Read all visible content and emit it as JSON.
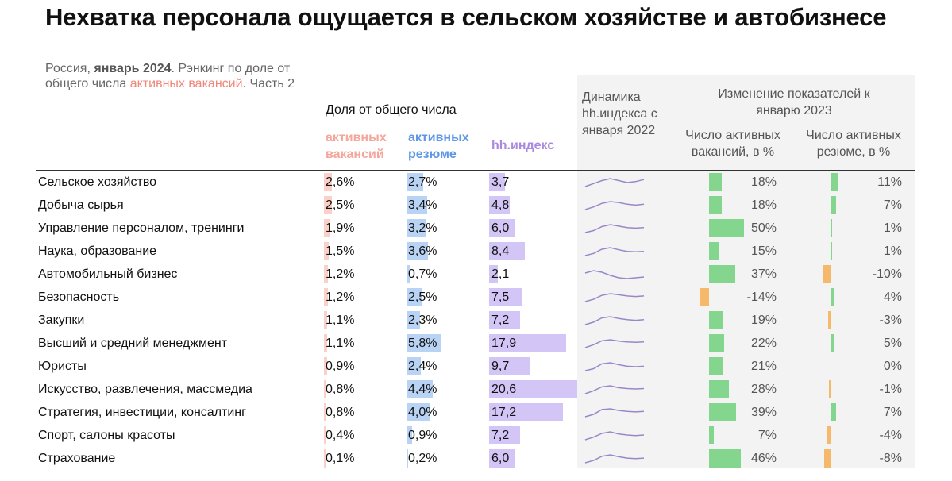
{
  "title": "Нехватка персонала ощущается в сельском хозяйстве и автобизнесе",
  "subtitle": {
    "part1": "Россия, ",
    "bold": "январь 2024",
    "part2": ". Рэнкинг по доле от общего числа ",
    "highlight": "активных вакансий",
    "part3": ". Часть 2"
  },
  "headers": {
    "share": "Доля от общего числа",
    "vacancies": "активных вакансий",
    "resumes": "активных резюме",
    "hh": "hh.индекс",
    "dynamics": "Динамика hh.индекса с января 2022",
    "change": "Изменение показателей к январю 2023",
    "change_vac": "Число активных вакансий, в %",
    "change_res": "Число активных резюме, в %"
  },
  "colors": {
    "vacancies": "#fbd0c9",
    "resumes": "#b9d3f5",
    "hh": "#d4c5f7",
    "positive": "#84d68e",
    "negative": "#f6b86a",
    "spark": "#9a87c9"
  },
  "chart_data": {
    "type": "table",
    "rows": [
      {
        "category": "Сельское хозяйство",
        "vac": 2.6,
        "vac_label": "2,6%",
        "res": 2.7,
        "res_label": "2,7%",
        "hh": 3.7,
        "hh_label": "3,7",
        "chg_vac": 18,
        "chg_vac_label": "18%",
        "chg_res": 11,
        "chg_res_label": "11%"
      },
      {
        "category": "Добыча сырья",
        "vac": 2.5,
        "vac_label": "2,5%",
        "res": 3.4,
        "res_label": "3,4%",
        "hh": 4.8,
        "hh_label": "4,8",
        "chg_vac": 18,
        "chg_vac_label": "18%",
        "chg_res": 7,
        "chg_res_label": "7%"
      },
      {
        "category": "Управление персоналом, тренинги",
        "vac": 1.9,
        "vac_label": "1,9%",
        "res": 3.2,
        "res_label": "3,2%",
        "hh": 6.0,
        "hh_label": "6,0",
        "chg_vac": 50,
        "chg_vac_label": "50%",
        "chg_res": 1,
        "chg_res_label": "1%"
      },
      {
        "category": "Наука, образование",
        "vac": 1.5,
        "vac_label": "1,5%",
        "res": 3.6,
        "res_label": "3,6%",
        "hh": 8.4,
        "hh_label": "8,4",
        "chg_vac": 15,
        "chg_vac_label": "15%",
        "chg_res": 1,
        "chg_res_label": "1%"
      },
      {
        "category": "Автомобильный бизнес",
        "vac": 1.2,
        "vac_label": "1,2%",
        "res": 0.7,
        "res_label": "0,7%",
        "hh": 2.1,
        "hh_label": "2,1",
        "chg_vac": 37,
        "chg_vac_label": "37%",
        "chg_res": -10,
        "chg_res_label": "-10%"
      },
      {
        "category": "Безопасность",
        "vac": 1.2,
        "vac_label": "1,2%",
        "res": 2.5,
        "res_label": "2,5%",
        "hh": 7.5,
        "hh_label": "7,5",
        "chg_vac": -14,
        "chg_vac_label": "-14%",
        "chg_res": 4,
        "chg_res_label": "4%"
      },
      {
        "category": "Закупки",
        "vac": 1.1,
        "vac_label": "1,1%",
        "res": 2.3,
        "res_label": "2,3%",
        "hh": 7.2,
        "hh_label": "7,2",
        "chg_vac": 19,
        "chg_vac_label": "19%",
        "chg_res": -3,
        "chg_res_label": "-3%"
      },
      {
        "category": "Высший и средний менеджмент",
        "vac": 1.1,
        "vac_label": "1,1%",
        "res": 5.8,
        "res_label": "5,8%",
        "hh": 17.9,
        "hh_label": "17,9",
        "chg_vac": 22,
        "chg_vac_label": "22%",
        "chg_res": 5,
        "chg_res_label": "5%"
      },
      {
        "category": "Юристы",
        "vac": 0.9,
        "vac_label": "0,9%",
        "res": 2.4,
        "res_label": "2,4%",
        "hh": 9.7,
        "hh_label": "9,7",
        "chg_vac": 21,
        "chg_vac_label": "21%",
        "chg_res": 0,
        "chg_res_label": "0%"
      },
      {
        "category": "Искусство, развлечения, массмедиа",
        "vac": 0.8,
        "vac_label": "0,8%",
        "res": 4.4,
        "res_label": "4,4%",
        "hh": 20.6,
        "hh_label": "20,6",
        "chg_vac": 28,
        "chg_vac_label": "28%",
        "chg_res": -1,
        "chg_res_label": "-1%"
      },
      {
        "category": "Стратегия, инвестиции, консалтинг",
        "vac": 0.8,
        "vac_label": "0,8%",
        "res": 4.0,
        "res_label": "4,0%",
        "hh": 17.2,
        "hh_label": "17,2",
        "chg_vac": 39,
        "chg_vac_label": "39%",
        "chg_res": 7,
        "chg_res_label": "7%"
      },
      {
        "category": "Спорт, салоны красоты",
        "vac": 0.4,
        "vac_label": "0,4%",
        "res": 0.9,
        "res_label": "0,9%",
        "hh": 7.2,
        "hh_label": "7,2",
        "chg_vac": 7,
        "chg_vac_label": "7%",
        "chg_res": -4,
        "chg_res_label": "-4%"
      },
      {
        "category": "Страхование",
        "vac": 0.1,
        "vac_label": "0,1%",
        "res": 0.2,
        "res_label": "0,2%",
        "hh": 6.0,
        "hh_label": "6,0",
        "chg_vac": 46,
        "chg_vac_label": "46%",
        "chg_res": -8,
        "chg_res_label": "-8%"
      }
    ],
    "sparklines": [
      [
        3.0,
        3.3,
        3.6,
        3.8,
        3.6,
        3.4,
        3.5,
        3.7
      ],
      [
        4.2,
        4.5,
        4.9,
        5.1,
        5.0,
        4.8,
        4.7,
        4.8
      ],
      [
        5.0,
        5.4,
        6.2,
        6.6,
        6.3,
        6.0,
        5.9,
        6.0
      ],
      [
        7.6,
        8.0,
        8.8,
        9.1,
        8.7,
        8.4,
        8.3,
        8.4
      ],
      [
        2.6,
        2.9,
        2.7,
        2.3,
        2.0,
        1.9,
        2.0,
        2.1
      ],
      [
        6.5,
        6.9,
        7.6,
        7.9,
        7.7,
        7.5,
        7.4,
        7.5
      ],
      [
        6.4,
        6.8,
        7.5,
        7.7,
        7.4,
        7.2,
        7.1,
        7.2
      ],
      [
        15.0,
        16.5,
        18.5,
        19.0,
        18.3,
        17.9,
        17.7,
        17.9
      ],
      [
        8.8,
        9.2,
        10.2,
        10.4,
        10.0,
        9.7,
        9.6,
        9.7
      ],
      [
        18.0,
        19.5,
        21.5,
        22.0,
        21.0,
        20.6,
        20.4,
        20.6
      ],
      [
        15.0,
        16.0,
        18.0,
        18.3,
        17.6,
        17.2,
        17.0,
        17.2
      ],
      [
        6.3,
        6.8,
        7.5,
        7.8,
        7.4,
        7.2,
        7.1,
        7.2
      ],
      [
        5.0,
        5.5,
        6.4,
        6.7,
        6.3,
        6.0,
        5.9,
        6.0
      ]
    ]
  }
}
